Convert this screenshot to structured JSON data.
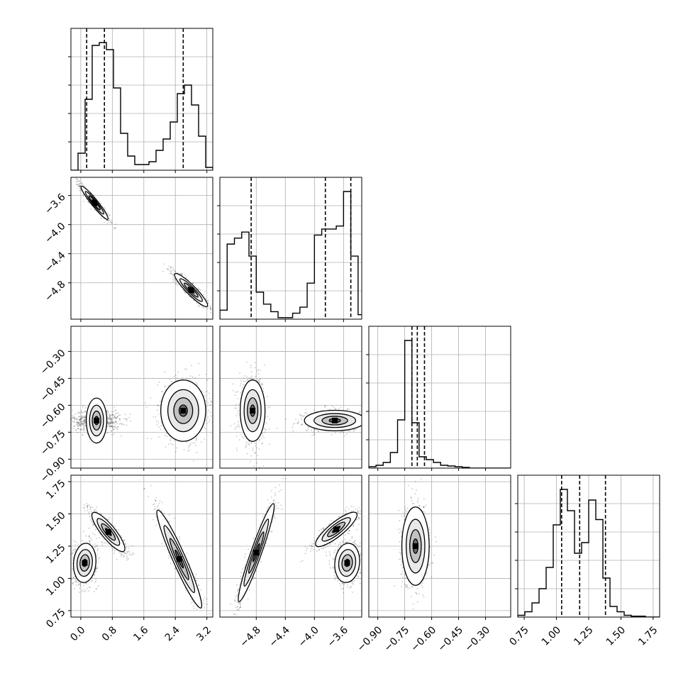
{
  "figure": {
    "type": "corner-plot",
    "background": "#ffffff"
  },
  "colors": {
    "line": "#000000",
    "grid": "#b0b0b0",
    "scatter": "#000000"
  },
  "chart_data": {
    "type": "corner",
    "parameters": [
      "",
      "",
      "",
      ""
    ],
    "quantile_lines": [
      [
        0.15,
        0.6,
        2.6
      ],
      [
        -4.87,
        -3.85,
        -3.5
      ],
      [
        -0.71,
        -0.68,
        -0.64
      ],
      [
        1.04,
        1.18,
        1.38
      ]
    ],
    "axis_ticks": [
      [
        "0.0",
        "0.8",
        "1.6",
        "2.4",
        "3.2"
      ],
      [
        "−4.8",
        "−4.4",
        "−4.0",
        "−3.6"
      ],
      [
        "−0.90",
        "−0.75",
        "−0.60",
        "−0.45",
        "−0.30"
      ],
      [
        "0.75",
        "1.00",
        "1.25",
        "1.50",
        "1.75"
      ]
    ],
    "y_ticks": [
      [],
      [
        "−3.6",
        "−4.0",
        "−4.4",
        "−4.8"
      ],
      [
        "−0.30",
        "−0.45",
        "−0.60",
        "−0.75",
        "−0.90"
      ],
      [
        "1.75",
        "1.50",
        "1.25",
        "1.00",
        "0.75"
      ]
    ],
    "ranges": [
      [
        -0.25,
        3.35
      ],
      [
        -5.3,
        -3.35
      ],
      [
        -0.95,
        -0.16
      ],
      [
        0.7,
        1.8
      ]
    ],
    "histograms": [
      {
        "bin_edges": [
          -0.25,
          -0.07,
          0.11,
          0.29,
          0.47,
          0.65,
          0.83,
          1.01,
          1.19,
          1.37,
          1.55,
          1.73,
          1.91,
          2.09,
          2.27,
          2.45,
          2.63,
          2.81,
          2.99,
          3.17,
          3.35
        ],
        "counts": [
          0,
          0.12,
          0.5,
          0.88,
          0.9,
          0.85,
          0.58,
          0.26,
          0.1,
          0.04,
          0.04,
          0.06,
          0.14,
          0.22,
          0.34,
          0.54,
          0.6,
          0.46,
          0.24,
          0.02
        ]
      },
      {
        "bin_edges": [
          -5.3,
          -5.2,
          -5.1,
          -5.0,
          -4.9,
          -4.8,
          -4.7,
          -4.6,
          -4.5,
          -4.4,
          -4.3,
          -4.2,
          -4.1,
          -4.0,
          -3.9,
          -3.8,
          -3.7,
          -3.6,
          -3.5,
          -3.4,
          -3.3
        ],
        "counts": [
          0.06,
          0.5,
          0.54,
          0.58,
          0.42,
          0.18,
          0.1,
          0.05,
          0.01,
          0.01,
          0.04,
          0.08,
          0.24,
          0.56,
          0.6,
          0.6,
          0.62,
          0.85,
          0.42,
          0.03
        ]
      },
      {
        "bin_edges": [
          -0.95,
          -0.91,
          -0.87,
          -0.83,
          -0.79,
          -0.75,
          -0.71,
          -0.67,
          -0.63,
          -0.59,
          -0.55,
          -0.51,
          -0.47,
          -0.43,
          -0.39,
          -0.35,
          -0.31,
          -0.27,
          -0.23,
          -0.19,
          -0.15
        ],
        "counts": [
          0.01,
          0.02,
          0.04,
          0.11,
          0.34,
          0.9,
          0.32,
          0.08,
          0.06,
          0.04,
          0.02,
          0.015,
          0.01,
          0.005,
          0,
          0,
          0,
          0,
          0,
          0
        ]
      },
      {
        "bin_edges": [
          0.7,
          0.755,
          0.81,
          0.865,
          0.92,
          0.975,
          1.03,
          1.085,
          1.14,
          1.195,
          1.25,
          1.305,
          1.36,
          1.415,
          1.47,
          1.525,
          1.58,
          1.635,
          1.69,
          1.745,
          1.8
        ],
        "counts": [
          0.01,
          0.03,
          0.08,
          0.16,
          0.28,
          0.52,
          0.72,
          0.6,
          0.36,
          0.42,
          0.66,
          0.55,
          0.22,
          0.06,
          0.03,
          0.01,
          0.005,
          0.005,
          0,
          0
        ]
      }
    ],
    "scatter_clusters": [
      {
        "i": 1,
        "j": 0,
        "clusters": [
          {
            "center": [
              0.35,
              -3.7
            ],
            "sd": [
              0.18,
              0.12
            ],
            "rho": -0.95
          },
          {
            "center": [
              2.8,
              -4.9
            ],
            "sd": [
              0.22,
              0.12
            ],
            "rho": -0.92
          }
        ]
      },
      {
        "i": 2,
        "j": 0,
        "clusters": [
          {
            "center": [
              0.4,
              -0.685
            ],
            "sd": [
              0.3,
              0.03
            ],
            "rho": 0
          },
          {
            "center": [
              2.6,
              -0.63
            ],
            "sd": [
              0.3,
              0.09
            ],
            "rho": 0
          }
        ]
      },
      {
        "i": 2,
        "j": 1,
        "clusters": [
          {
            "center": [
              -4.85,
              -0.63
            ],
            "sd": [
              0.09,
              0.09
            ],
            "rho": 0
          },
          {
            "center": [
              -3.72,
              -0.685
            ],
            "sd": [
              0.22,
              0.03
            ],
            "rho": 0
          }
        ]
      },
      {
        "i": 3,
        "j": 0,
        "clusters": [
          {
            "center": [
              0.1,
              1.12
            ],
            "sd": [
              0.15,
              0.08
            ],
            "rho": 0.1
          },
          {
            "center": [
              0.7,
              1.36
            ],
            "sd": [
              0.22,
              0.08
            ],
            "rho": -0.85
          },
          {
            "center": [
              2.5,
              1.15
            ],
            "sd": [
              0.3,
              0.2
            ],
            "rho": -0.95
          }
        ]
      },
      {
        "i": 3,
        "j": 1,
        "clusters": [
          {
            "center": [
              -4.8,
              1.2
            ],
            "sd": [
              0.13,
              0.2
            ],
            "rho": 0.95
          },
          {
            "center": [
              -3.7,
              1.38
            ],
            "sd": [
              0.15,
              0.07
            ],
            "rho": 0.85
          },
          {
            "center": [
              -3.55,
              1.12
            ],
            "sd": [
              0.09,
              0.08
            ],
            "rho": 0.1
          }
        ]
      },
      {
        "i": 3,
        "j": 2,
        "clusters": [
          {
            "center": [
              -0.69,
              1.25
            ],
            "sd": [
              0.04,
              0.16
            ],
            "rho": 0
          }
        ]
      }
    ],
    "grid": true
  }
}
